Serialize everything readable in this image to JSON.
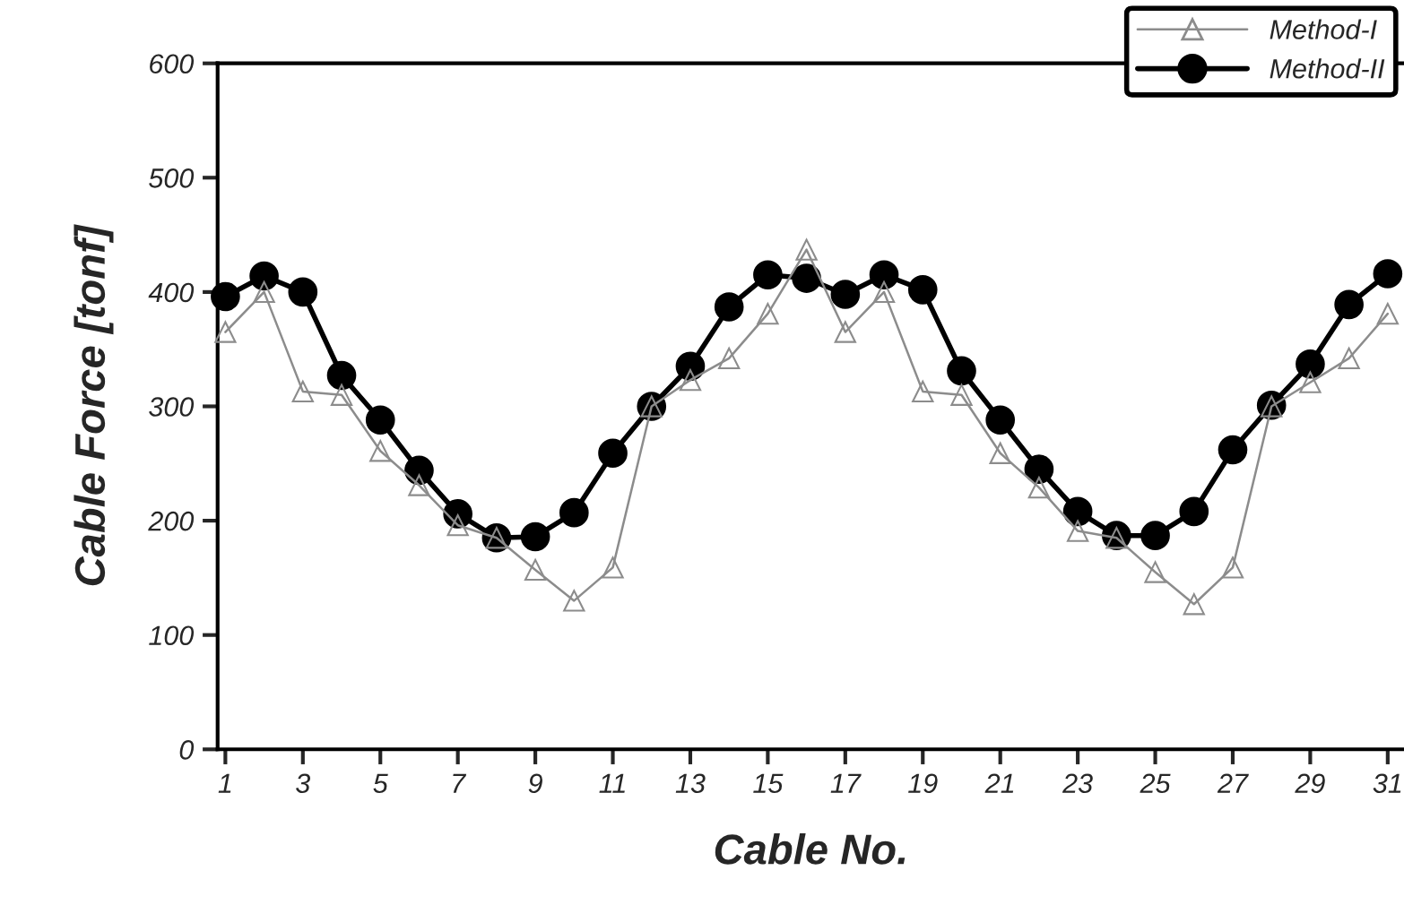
{
  "chart_data": {
    "type": "line",
    "xlabel": "Cable No.",
    "ylabel": "Cable Force [tonf]",
    "x": [
      1,
      2,
      3,
      4,
      5,
      6,
      7,
      8,
      9,
      10,
      11,
      12,
      13,
      14,
      15,
      16,
      17,
      18,
      19,
      20,
      21,
      22,
      23,
      24,
      25,
      26,
      27,
      28,
      29,
      30,
      31
    ],
    "series": [
      {
        "name": "Method-I",
        "color": "#8c8c8c",
        "marker": "triangle",
        "values": [
          365,
          400,
          313,
          310,
          261,
          231,
          196,
          185,
          157,
          130,
          159,
          300,
          323,
          342,
          381,
          437,
          365,
          400,
          313,
          310,
          259,
          229,
          191,
          185,
          155,
          127,
          159,
          300,
          321,
          342,
          381
        ]
      },
      {
        "name": "Method-II",
        "color": "#000000",
        "marker": "circle",
        "values": [
          396,
          414,
          400,
          327,
          288,
          244,
          206,
          185,
          186,
          207,
          259,
          300,
          335,
          387,
          415,
          412,
          398,
          415,
          402,
          331,
          288,
          245,
          208,
          187,
          187,
          208,
          262,
          301,
          337,
          389,
          416
        ]
      }
    ],
    "xlim": [
      0.8,
      31.42
    ],
    "xticks": [
      1,
      3,
      5,
      7,
      9,
      11,
      13,
      15,
      17,
      19,
      21,
      23,
      25,
      27,
      29,
      31
    ],
    "ylim": [
      0,
      600
    ],
    "yticks": [
      0,
      100,
      200,
      300,
      400,
      500,
      600
    ],
    "grid": false,
    "legend": "top right",
    "line_style": "solid"
  }
}
